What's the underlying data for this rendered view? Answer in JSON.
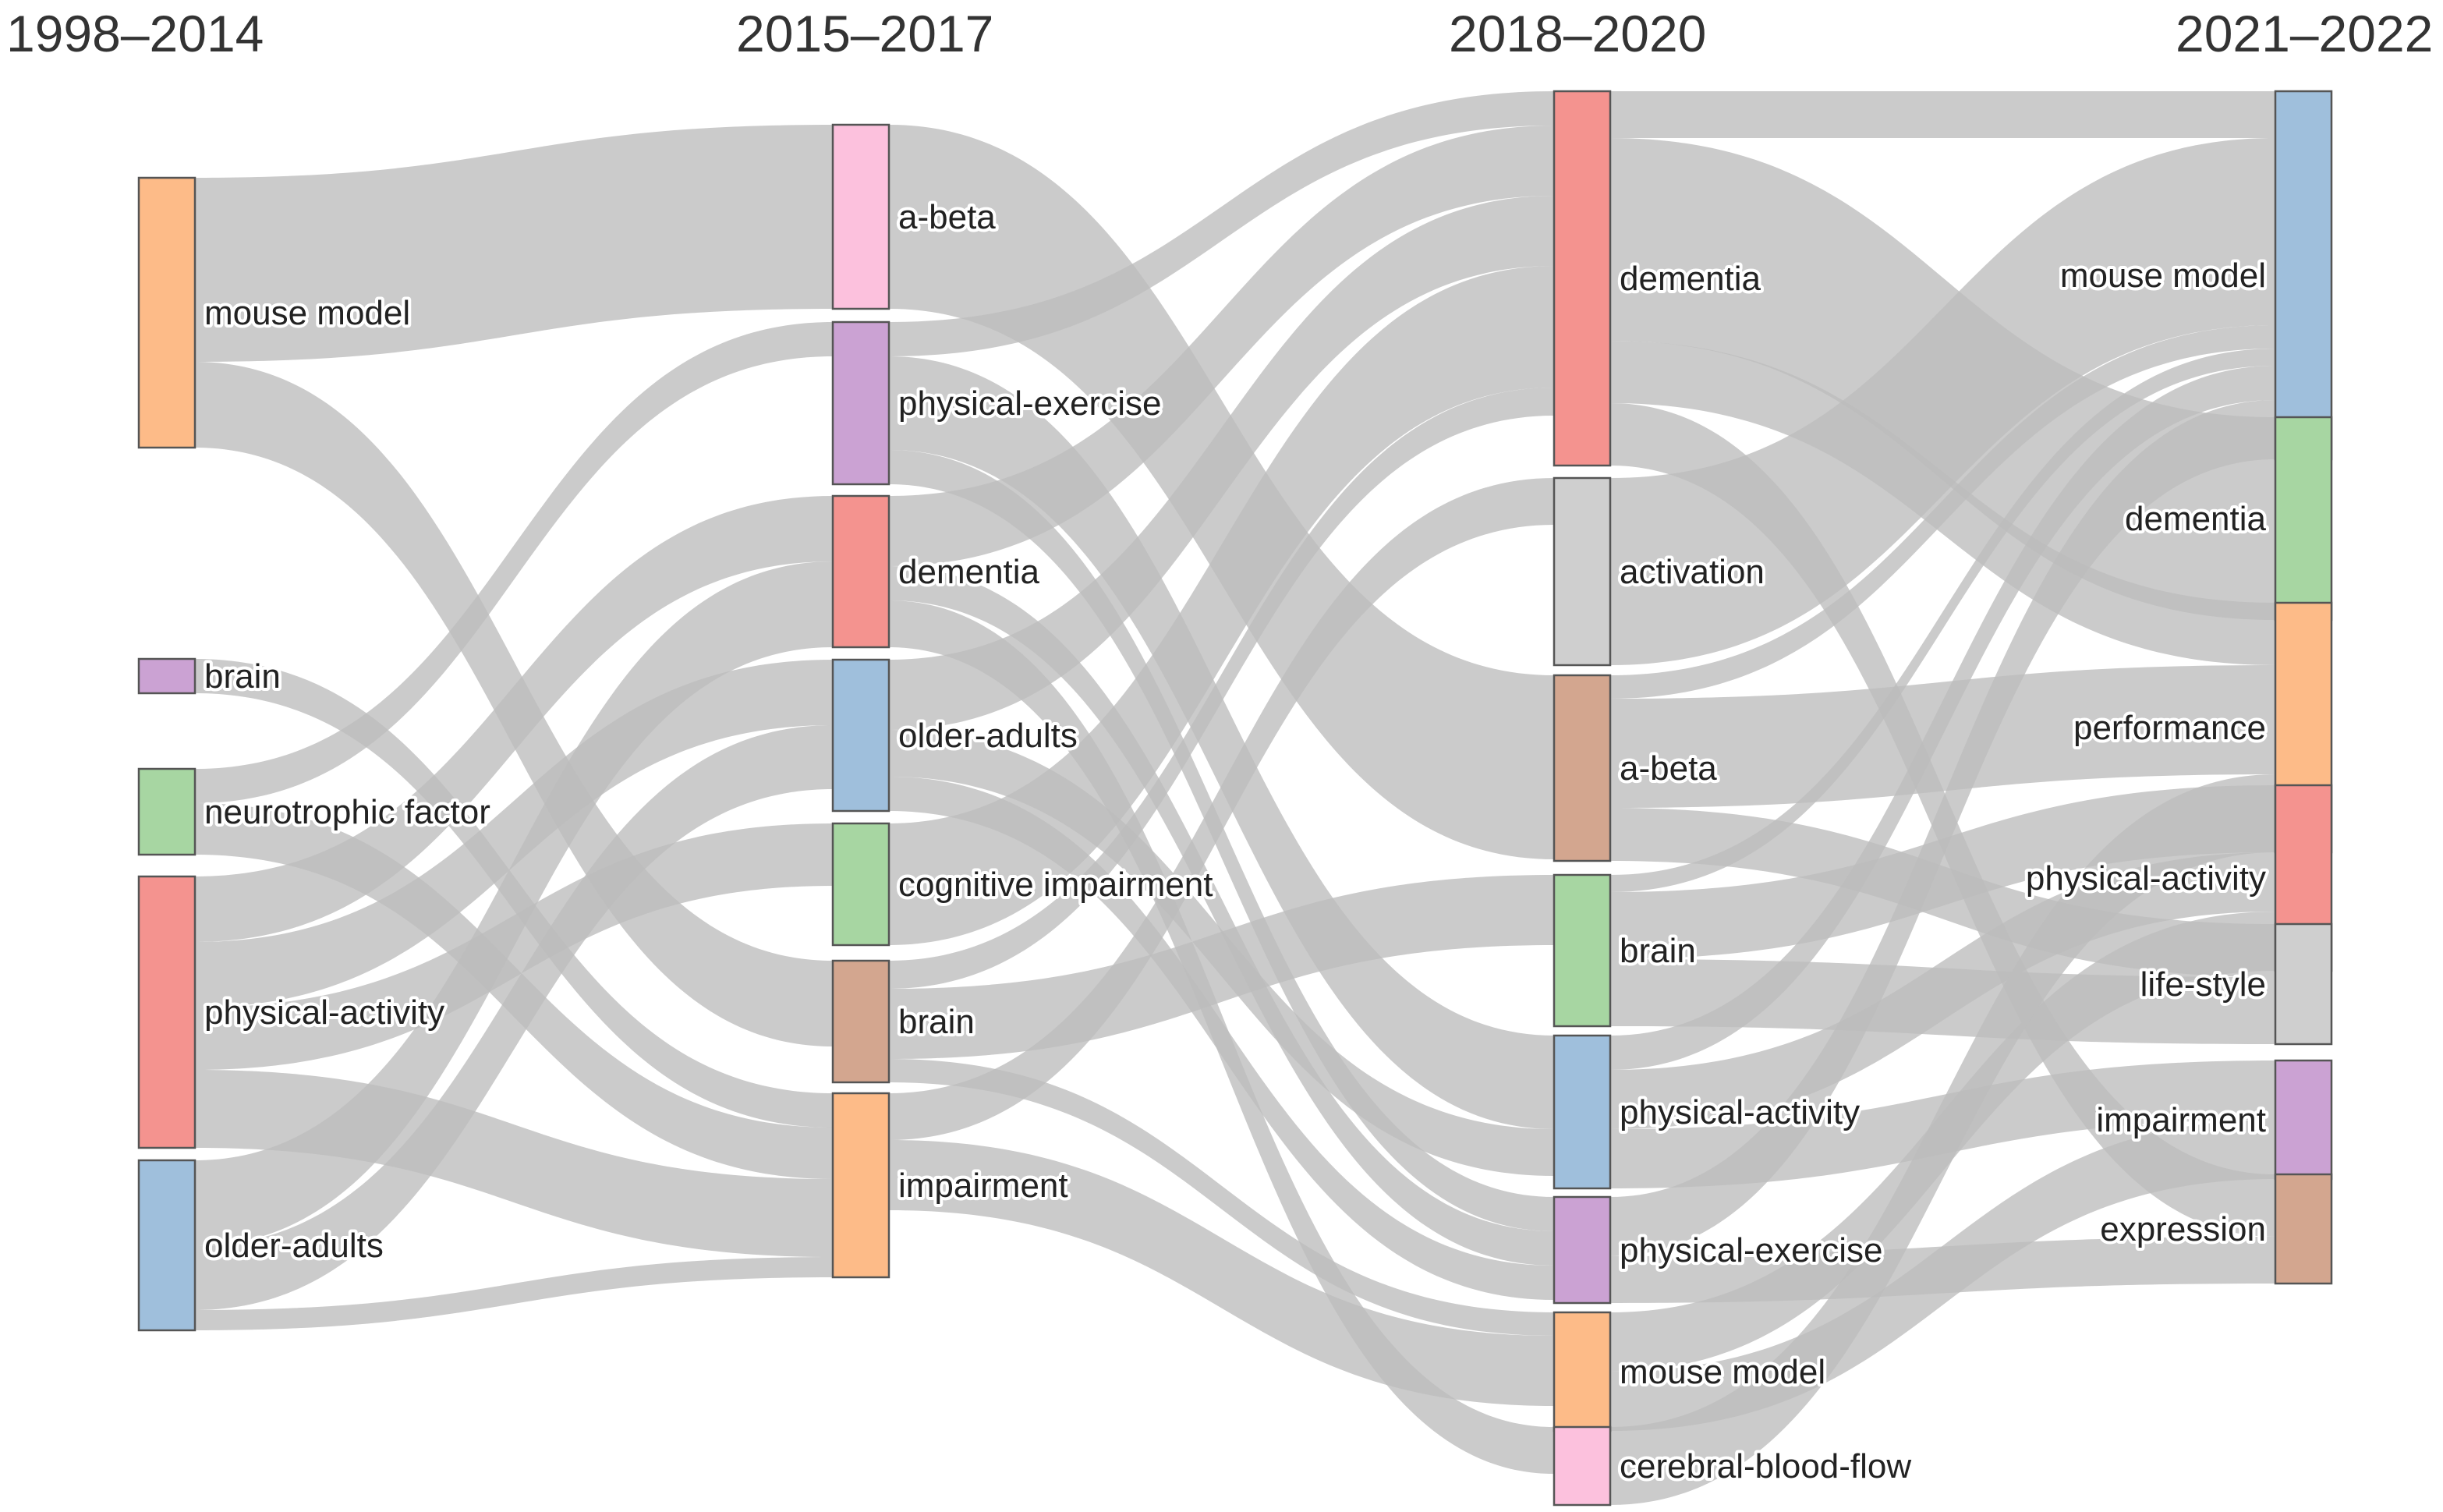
{
  "chart_data": {
    "type": "sankey",
    "columns": [
      {
        "title": "1998–2014",
        "nodes": [
          {
            "label": "mouse model",
            "color": "#fdbb88"
          },
          {
            "label": "brain",
            "color": "#cba2d3"
          },
          {
            "label": "neurotrophic factor",
            "color": "#a7d6a2"
          },
          {
            "label": "physical-activity",
            "color": "#f4938f"
          },
          {
            "label": "older-adults",
            "color": "#9fbfdc"
          }
        ]
      },
      {
        "title": "2015–2017",
        "nodes": [
          {
            "label": "a-beta",
            "color": "#fcc1dd"
          },
          {
            "label": "physical-exercise",
            "color": "#cba2d3"
          },
          {
            "label": "dementia",
            "color": "#f4938f"
          },
          {
            "label": "older-adults",
            "color": "#9fbfdc"
          },
          {
            "label": "cognitive impairment",
            "color": "#a7d6a2"
          },
          {
            "label": "brain",
            "color": "#d3a68f"
          },
          {
            "label": "impairment",
            "color": "#fdbb88"
          }
        ]
      },
      {
        "title": "2018–2020",
        "nodes": [
          {
            "label": "dementia",
            "color": "#f4938f"
          },
          {
            "label": "activation",
            "color": "#cfcfcf"
          },
          {
            "label": "a-beta",
            "color": "#d3a68f"
          },
          {
            "label": "brain",
            "color": "#a7d6a2"
          },
          {
            "label": "physical-activity",
            "color": "#9fbfdc"
          },
          {
            "label": "physical-exercise",
            "color": "#cba2d3"
          },
          {
            "label": "mouse model",
            "color": "#fdbb88"
          },
          {
            "label": "cerebral-blood-flow",
            "color": "#fcc1dd"
          }
        ]
      },
      {
        "title": "2021–2022",
        "nodes": [
          {
            "label": "mouse model",
            "color": "#9fbfdc"
          },
          {
            "label": "dementia",
            "color": "#a7d6a2"
          },
          {
            "label": "performance",
            "color": "#fdbb88"
          },
          {
            "label": "physical-activity",
            "color": "#f4938f"
          },
          {
            "label": "life-style",
            "color": "#cfcfcf"
          },
          {
            "label": "impairment",
            "color": "#cba2d3"
          },
          {
            "label": "expression",
            "color": "#d3a68f"
          }
        ]
      }
    ],
    "links": [
      {
        "source": "0.0",
        "target": "1.0",
        "value": 118
      },
      {
        "source": "0.0",
        "target": "1.5",
        "value": 55
      },
      {
        "source": "0.1",
        "target": "1.6",
        "value": 22
      },
      {
        "source": "0.2",
        "target": "1.1",
        "value": 22
      },
      {
        "source": "0.2",
        "target": "1.6",
        "value": 33
      },
      {
        "source": "0.3",
        "target": "1.2",
        "value": 42
      },
      {
        "source": "0.3",
        "target": "1.3",
        "value": 42
      },
      {
        "source": "0.3",
        "target": "1.4",
        "value": 40
      },
      {
        "source": "0.3",
        "target": "1.6",
        "value": 50
      },
      {
        "source": "0.4",
        "target": "1.2",
        "value": 55
      },
      {
        "source": "0.4",
        "target": "1.3",
        "value": 41
      },
      {
        "source": "0.4",
        "target": "1.6",
        "value": 13
      },
      {
        "source": "1.0",
        "target": "2.2",
        "value": 118
      },
      {
        "source": "1.1",
        "target": "2.0",
        "value": 22
      },
      {
        "source": "1.1",
        "target": "2.4",
        "value": 60
      },
      {
        "source": "1.1",
        "target": "2.5",
        "value": 22
      },
      {
        "source": "1.2",
        "target": "2.0",
        "value": 45
      },
      {
        "source": "1.2",
        "target": "2.5",
        "value": 22
      },
      {
        "source": "1.2",
        "target": "2.7",
        "value": 30
      },
      {
        "source": "1.3",
        "target": "2.0",
        "value": 45
      },
      {
        "source": "1.3",
        "target": "2.4",
        "value": 30
      },
      {
        "source": "1.3",
        "target": "2.5",
        "value": 22
      },
      {
        "source": "1.4",
        "target": "2.0",
        "value": 78
      },
      {
        "source": "1.5",
        "target": "2.0",
        "value": 18
      },
      {
        "source": "1.5",
        "target": "2.3",
        "value": 45
      },
      {
        "source": "1.5",
        "target": "2.6",
        "value": 15
      },
      {
        "source": "1.6",
        "target": "2.1",
        "value": 30
      },
      {
        "source": "1.6",
        "target": "2.6",
        "value": 45
      },
      {
        "source": "2.0",
        "target": "3.0",
        "value": 30
      },
      {
        "source": "2.0",
        "target": "3.1",
        "value": 130
      },
      {
        "source": "2.0",
        "target": "3.2",
        "value": 40
      },
      {
        "source": "2.0",
        "target": "3.6",
        "value": 40
      },
      {
        "source": "2.1",
        "target": "3.0",
        "value": 120
      },
      {
        "source": "2.2",
        "target": "3.0",
        "value": 15
      },
      {
        "source": "2.2",
        "target": "3.2",
        "value": 70
      },
      {
        "source": "2.2",
        "target": "3.4",
        "value": 34
      },
      {
        "source": "2.3",
        "target": "3.3",
        "value": 43
      },
      {
        "source": "2.3",
        "target": "3.4",
        "value": 43
      },
      {
        "source": "2.3",
        "target": "3.0",
        "value": 11
      },
      {
        "source": "2.4",
        "target": "3.3",
        "value": 38
      },
      {
        "source": "2.4",
        "target": "3.5",
        "value": 38
      },
      {
        "source": "2.4",
        "target": "3.0",
        "value": 22
      },
      {
        "source": "2.5",
        "target": "3.6",
        "value": 30
      },
      {
        "source": "2.5",
        "target": "3.0",
        "value": 38
      },
      {
        "source": "2.6",
        "target": "3.3",
        "value": 38
      },
      {
        "source": "2.6",
        "target": "3.5",
        "value": 38
      },
      {
        "source": "2.7",
        "target": "3.2",
        "value": 50
      }
    ]
  }
}
